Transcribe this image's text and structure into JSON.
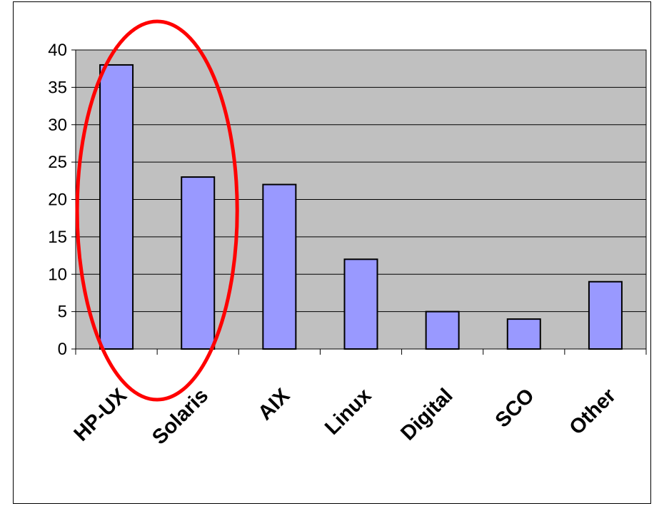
{
  "chart_data": {
    "type": "bar",
    "title": "",
    "xlabel": "",
    "ylabel": "",
    "categories": [
      "HP-UX",
      "Solaris",
      "AIX",
      "Linux",
      "Digital",
      "SCO",
      "Other"
    ],
    "values": [
      38,
      23,
      22,
      12,
      5,
      4,
      9
    ],
    "ylim": [
      0,
      40
    ],
    "yticks": [
      0,
      5,
      10,
      15,
      20,
      25,
      30,
      35,
      40
    ],
    "grid": true,
    "legend": "none",
    "colors": {
      "plot_background": "#c0c0c0",
      "bar_fill": "#9999ff",
      "bar_stroke": "#000000",
      "highlight_ellipse": "#ff0000"
    },
    "annotations": [
      {
        "type": "ellipse",
        "encloses": [
          "HP-UX",
          "Solaris"
        ],
        "color": "#ff0000"
      }
    ]
  }
}
